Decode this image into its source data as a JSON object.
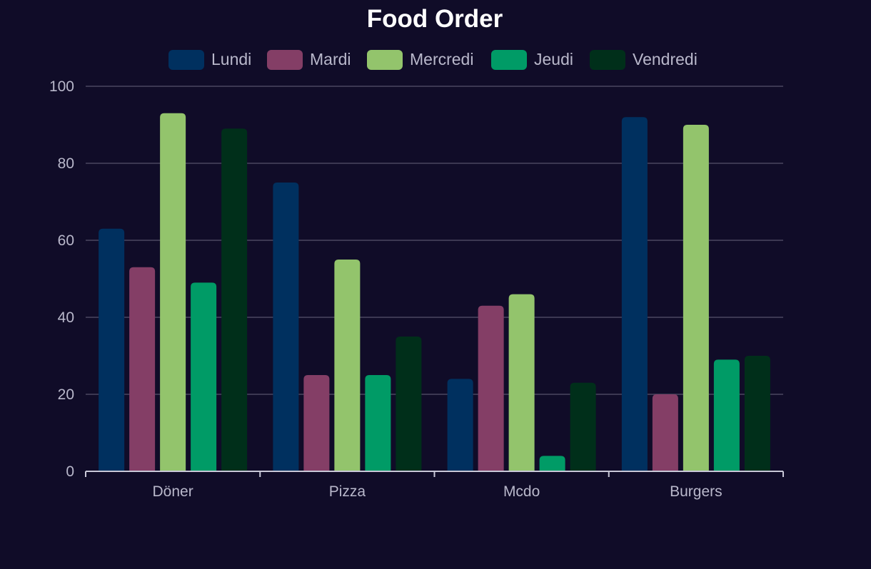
{
  "chart_data": {
    "type": "bar",
    "title": "Food Order",
    "xlabel": "",
    "ylabel": "",
    "categories": [
      "Döner",
      "Pizza",
      "Mcdo",
      "Burgers"
    ],
    "series": [
      {
        "name": "Lundi",
        "color": "#00305f",
        "values": [
          63,
          75,
          24,
          92
        ]
      },
      {
        "name": "Mardi",
        "color": "#843e66",
        "values": [
          53,
          25,
          43,
          20
        ]
      },
      {
        "name": "Mercredi",
        "color": "#93c46c",
        "values": [
          93,
          55,
          46,
          90
        ]
      },
      {
        "name": "Jeudi",
        "color": "#009b66",
        "values": [
          49,
          25,
          4,
          29
        ]
      },
      {
        "name": "Vendredi",
        "color": "#002f1a",
        "values": [
          89,
          35,
          23,
          30
        ]
      }
    ],
    "ylim": [
      0,
      100
    ],
    "yticks": [
      0,
      20,
      40,
      60,
      80,
      100
    ],
    "grid": true,
    "legend": "top-center"
  }
}
